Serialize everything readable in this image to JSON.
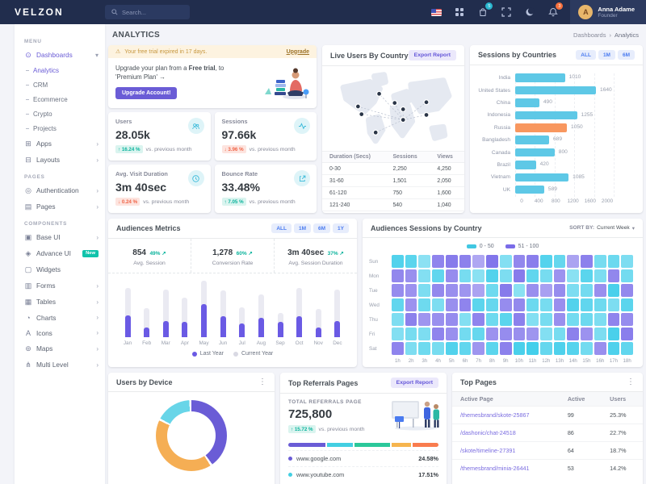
{
  "header": {
    "logo": "VELZON",
    "search_placeholder": "Search...",
    "cart_badge": "5",
    "bell_badge": "3",
    "user": {
      "name": "Anna Adame",
      "role": "Founder",
      "initials": "A"
    }
  },
  "page": {
    "title": "ANALYTICS",
    "breadcrumb": [
      "Dashboards",
      "Analytics"
    ],
    "breadcrumb_sep": "›"
  },
  "sidebar": {
    "sections": [
      {
        "label": "MENU",
        "items": [
          {
            "id": "dashboards",
            "label": "Dashboards",
            "glyph": "⊙",
            "state": "active",
            "arrow": "down"
          },
          {
            "id": "analytics",
            "label": "Analytics",
            "sub": true,
            "active": true
          },
          {
            "id": "crm",
            "label": "CRM",
            "sub": true
          },
          {
            "id": "ecommerce",
            "label": "Ecommerce",
            "sub": true
          },
          {
            "id": "crypto",
            "label": "Crypto",
            "sub": true
          },
          {
            "id": "projects",
            "label": "Projects",
            "sub": true
          },
          {
            "id": "apps",
            "label": "Apps",
            "glyph": "⊞",
            "arrow": "right"
          },
          {
            "id": "layouts",
            "label": "Layouts",
            "glyph": "⊟",
            "arrow": "right"
          }
        ]
      },
      {
        "label": "PAGES",
        "items": [
          {
            "id": "authentication",
            "label": "Authentication",
            "glyph": "◎",
            "arrow": "right"
          },
          {
            "id": "pages",
            "label": "Pages",
            "glyph": "▤",
            "arrow": "right"
          }
        ]
      },
      {
        "label": "COMPONENTS",
        "items": [
          {
            "id": "base-ui",
            "label": "Base UI",
            "glyph": "▣",
            "arrow": "right"
          },
          {
            "id": "advance-ui",
            "label": "Advance UI",
            "glyph": "◈",
            "badge": "New"
          },
          {
            "id": "widgets",
            "label": "Widgets",
            "glyph": "▢"
          },
          {
            "id": "forms",
            "label": "Forms",
            "glyph": "▥",
            "arrow": "right"
          },
          {
            "id": "tables",
            "label": "Tables",
            "glyph": "▦",
            "arrow": "right"
          },
          {
            "id": "charts",
            "label": "Charts",
            "glyph": "◔",
            "arrow": "right"
          },
          {
            "id": "icons",
            "label": "Icons",
            "glyph": "A",
            "arrow": "right"
          },
          {
            "id": "maps",
            "label": "Maps",
            "glyph": "⊚",
            "arrow": "right"
          },
          {
            "id": "multi-level",
            "label": "Multi Level",
            "glyph": "⋔",
            "arrow": "right"
          }
        ]
      }
    ]
  },
  "upgrade": {
    "alert_icon": "⚠",
    "alert_text": "Your free trial expired in 17 days.",
    "alert_link": "Upgrade",
    "text_pre": "Upgrade your plan from a ",
    "text_bold": "Free trial",
    "text_post": ", to 'Premium Plan' →",
    "button": "Upgrade Account!"
  },
  "stats": [
    {
      "label": "Users",
      "value": "28.05k",
      "delta": "16.24 %",
      "dir": "up",
      "note": "vs. previous month",
      "icon": "users-icon"
    },
    {
      "label": "Sessions",
      "value": "97.66k",
      "delta": "3.96 %",
      "dir": "down",
      "note": "vs. previous month",
      "icon": "activity-icon"
    },
    {
      "label": "Avg. Visit Duration",
      "value": "3m 40sec",
      "delta": "0.24 %",
      "dir": "down",
      "note": "vs. previous month",
      "icon": "clock-icon"
    },
    {
      "label": "Bounce Rate",
      "value": "33.48%",
      "delta": "7.05 %",
      "dir": "up",
      "note": "vs. previous month",
      "icon": "external-icon"
    }
  ],
  "live_users": {
    "title": "Live Users By Country",
    "export_label": "Export Report",
    "table": {
      "headers": [
        "Duration (Secs)",
        "Sessions",
        "Views"
      ],
      "rows": [
        [
          "0-30",
          "2,250",
          "4,250"
        ],
        [
          "31-60",
          "1,501",
          "2,050"
        ],
        [
          "61-120",
          "750",
          "1,600"
        ],
        [
          "121-240",
          "540",
          "1,040"
        ]
      ]
    }
  },
  "audiences_metrics": {
    "title": "Audiences Metrics",
    "tabs": [
      "ALL",
      "1M",
      "6M",
      "1Y"
    ],
    "stats": [
      {
        "value": "854",
        "delta": "49%",
        "label": "Avg. Session"
      },
      {
        "value": "1,278",
        "delta": "60%",
        "label": "Conversion Rate"
      },
      {
        "value": "3m 40sec",
        "delta": "37%",
        "label": "Avg. Session Duration"
      }
    ]
  },
  "audiences_sessions": {
    "title": "Audiences Sessions by Country",
    "sort_label": "SORT BY:",
    "sort_value": "Current Week",
    "legend": [
      {
        "label": "0 - 50",
        "color": "#41c7e2"
      },
      {
        "label": "51 - 100",
        "color": "#7a6ce8"
      }
    ]
  },
  "users_by_device": {
    "title": "Users by Device"
  },
  "top_referrals": {
    "title": "Top Referrals Pages",
    "export_label": "Export Report",
    "total_label": "TOTAL REFERRALS PAGE",
    "total": "725,800",
    "delta": "15.72 %",
    "note": "vs. previous month",
    "items": [
      {
        "label": "www.google.com",
        "value": "24.58%",
        "color": "#6a5cd6"
      },
      {
        "label": "www.youtube.com",
        "value": "17.51%",
        "color": "#43cfe2"
      }
    ]
  },
  "top_pages": {
    "title": "Top Pages",
    "headers": [
      "Active Page",
      "Active",
      "Users"
    ],
    "rows": [
      [
        "/themesbrand/skote-25867",
        "99",
        "25.3%"
      ],
      [
        "/dashonic/chat-24518",
        "86",
        "22.7%"
      ],
      [
        "/skote/timeline-27391",
        "64",
        "18.7%"
      ],
      [
        "/themesbrand/minia-26441",
        "53",
        "14.2%"
      ]
    ]
  },
  "chart_data": [
    {
      "id": "sessions-by-countries",
      "type": "bar",
      "title": "Sessions by Countries",
      "tabs": [
        "ALL",
        "1M",
        "6M"
      ],
      "categories": [
        "India",
        "United States",
        "China",
        "Indonesia",
        "Russia",
        "Bangladesh",
        "Canada",
        "Brazil",
        "Vietnam",
        "UK"
      ],
      "values": [
        1010,
        1640,
        490,
        1255,
        1050,
        689,
        800,
        420,
        1085,
        589
      ],
      "colors": [
        "#5ec8e6",
        "#5ec8e6",
        "#5ec8e6",
        "#5ec8e6",
        "#f8975f",
        "#5ec8e6",
        "#5ec8e6",
        "#5ec8e6",
        "#5ec8e6",
        "#5ec8e6"
      ],
      "xlim": [
        0,
        2000
      ],
      "xticks": [
        "0",
        "400",
        "800",
        "1200",
        "1600",
        "2000"
      ],
      "legend_position": "none",
      "grid": "dashed-vertical"
    },
    {
      "id": "audiences-metrics-chart",
      "type": "column-stacked",
      "categories": [
        "Jan",
        "Feb",
        "Mar",
        "Apr",
        "May",
        "Jun",
        "Jul",
        "Aug",
        "Sep",
        "Oct",
        "Nov",
        "Dec"
      ],
      "series": [
        {
          "name": "Last Year",
          "color": "#6a5ae4",
          "values": [
            38,
            17,
            28,
            27,
            57,
            36,
            23,
            33,
            26,
            36,
            17,
            28
          ]
        },
        {
          "name": "Current Year",
          "color": "#eaeaf2",
          "values": [
            47,
            33,
            54,
            41,
            40,
            44,
            29,
            40,
            16,
            49,
            31,
            54
          ]
        }
      ],
      "ylim": [
        0,
        100
      ],
      "legend_position": "bottom"
    },
    {
      "id": "audience-heatmap",
      "type": "heatmap",
      "rows": [
        "Sun",
        "Mon",
        "Tue",
        "Wed",
        "Thu",
        "Fri",
        "Sat"
      ],
      "cols": [
        "1h",
        "2h",
        "3h",
        "4h",
        "5h",
        "6h",
        "7h",
        "8h",
        "9h",
        "10h",
        "11h",
        "12h",
        "13h",
        "14h",
        "15h",
        "16h",
        "17h",
        "18h"
      ],
      "scale": {
        "split": 50,
        "max": 100,
        "low_color": "#2ac8e8",
        "high_color": "#7365e8"
      },
      "values": [
        [
          45,
          42,
          25,
          78,
          85,
          80,
          52,
          88,
          28,
          76,
          82,
          44,
          38,
          55,
          80,
          32,
          36,
          30
        ],
        [
          75,
          70,
          28,
          40,
          72,
          32,
          26,
          45,
          30,
          85,
          40,
          32,
          68,
          26,
          42,
          30,
          76,
          34
        ],
        [
          72,
          68,
          30,
          74,
          70,
          66,
          55,
          35,
          84,
          26,
          70,
          58,
          72,
          30,
          34,
          70,
          48,
          74
        ],
        [
          40,
          68,
          35,
          30,
          70,
          78,
          42,
          38,
          72,
          74,
          36,
          32,
          70,
          45,
          40,
          35,
          30,
          42
        ],
        [
          30,
          80,
          66,
          70,
          72,
          28,
          78,
          35,
          42,
          80,
          28,
          32,
          70,
          34,
          36,
          30,
          78,
          72
        ],
        [
          28,
          32,
          30,
          78,
          70,
          34,
          38,
          68,
          72,
          70,
          66,
          28,
          32,
          80,
          68,
          30,
          48,
          82
        ],
        [
          78,
          30,
          35,
          32,
          45,
          40,
          66,
          42,
          80,
          48,
          50,
          38,
          46,
          44,
          34,
          70,
          46,
          40
        ]
      ]
    },
    {
      "id": "users-by-device",
      "type": "donut",
      "segments": [
        {
          "name": "segment-purple",
          "color": "#6a5cd6",
          "value": 41
        },
        {
          "name": "segment-orange",
          "color": "#f5ae54",
          "value": 42
        },
        {
          "name": "segment-cyan",
          "color": "#68d5e8",
          "value": 17
        }
      ]
    },
    {
      "id": "referrals-progress",
      "type": "progress-segments",
      "segments": [
        {
          "color": "#6a5cd6",
          "value": 24.58
        },
        {
          "color": "#43cfe2",
          "value": 17.51
        },
        {
          "color": "#2bc89a",
          "value": 23.41
        },
        {
          "color": "#f6b54e",
          "value": 12.75
        },
        {
          "color": "#f97c4e",
          "value": 21.75
        }
      ]
    }
  ]
}
